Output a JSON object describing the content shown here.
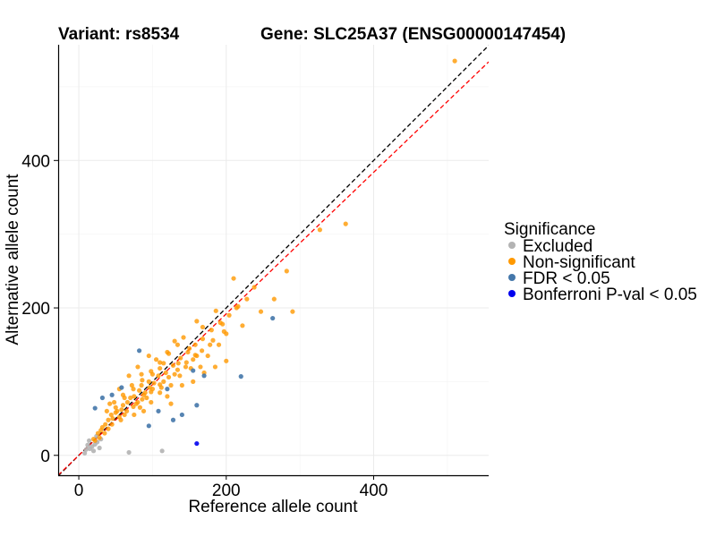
{
  "chart_data": {
    "type": "scatter",
    "title_left": "Variant: rs8534",
    "title_right": "Gene: SLC25A37 (ENSG00000147454)",
    "xlabel": "Reference allele count",
    "ylabel": "Alternative allele count",
    "xlim": [
      -28,
      556
    ],
    "ylim": [
      -27,
      557
    ],
    "x_ticks": [
      0,
      200,
      400
    ],
    "y_ticks": [
      0,
      200,
      400
    ],
    "grid": true,
    "legend_title": "Significance",
    "legend_position": "right",
    "reference_lines": [
      {
        "name": "identity",
        "slope": 1.0,
        "intercept": 0,
        "color": "#000000",
        "dash": "dashed"
      },
      {
        "name": "fit",
        "slope": 0.96,
        "intercept": 0,
        "color": "#ff0000",
        "dash": "dashed"
      }
    ],
    "series": [
      {
        "name": "Excluded",
        "color": "#b3b3b3",
        "points": [
          [
            10,
            8
          ],
          [
            12,
            14
          ],
          [
            15,
            9
          ],
          [
            18,
            12
          ],
          [
            20,
            6
          ],
          [
            22,
            15
          ],
          [
            25,
            18
          ],
          [
            14,
            20
          ],
          [
            30,
            22
          ],
          [
            28,
            10
          ],
          [
            68,
            4
          ],
          [
            113,
            6
          ],
          [
            8,
            3
          ],
          [
            24,
            26
          ]
        ]
      },
      {
        "name": "Non-significant",
        "color": "#ff9900",
        "points": [
          [
            510,
            535
          ],
          [
            362,
            314
          ],
          [
            327,
            306
          ],
          [
            282,
            250
          ],
          [
            290,
            195
          ],
          [
            247,
            195
          ],
          [
            238,
            228
          ],
          [
            210,
            240
          ],
          [
            265,
            212
          ],
          [
            222,
            176
          ],
          [
            195,
            178
          ],
          [
            228,
            212
          ],
          [
            186,
            196
          ],
          [
            168,
            174
          ],
          [
            200,
            165
          ],
          [
            214,
            200
          ],
          [
            178,
            150
          ],
          [
            160,
            182
          ],
          [
            155,
            130
          ],
          [
            142,
            160
          ],
          [
            175,
            135
          ],
          [
            190,
            150
          ],
          [
            120,
            140
          ],
          [
            135,
            125
          ],
          [
            110,
            118
          ],
          [
            150,
            145
          ],
          [
            130,
            155
          ],
          [
            165,
            120
          ],
          [
            125,
            95
          ],
          [
            100,
            110
          ],
          [
            95,
            100
          ],
          [
            90,
            85
          ],
          [
            85,
            95
          ],
          [
            80,
            72
          ],
          [
            75,
            80
          ],
          [
            70,
            78
          ],
          [
            65,
            60
          ],
          [
            60,
            68
          ],
          [
            55,
            52
          ],
          [
            50,
            58
          ],
          [
            45,
            42
          ],
          [
            40,
            48
          ],
          [
            35,
            30
          ],
          [
            32,
            38
          ],
          [
            28,
            24
          ],
          [
            26,
            30
          ],
          [
            22,
            20
          ],
          [
            20,
            22
          ],
          [
            38,
            60
          ],
          [
            42,
            70
          ],
          [
            55,
            90
          ],
          [
            68,
            108
          ],
          [
            80,
            120
          ],
          [
            95,
            135
          ],
          [
            60,
            82
          ],
          [
            48,
            72
          ],
          [
            72,
            95
          ],
          [
            85,
            110
          ],
          [
            105,
            130
          ],
          [
            115,
            100
          ],
          [
            130,
            110
          ],
          [
            145,
            120
          ],
          [
            160,
            135
          ],
          [
            110,
            85
          ],
          [
            98,
            72
          ],
          [
            120,
            80
          ],
          [
            88,
            60
          ],
          [
            75,
            55
          ],
          [
            140,
            95
          ],
          [
            125,
            70
          ],
          [
            155,
            100
          ],
          [
            170,
            112
          ],
          [
            185,
            120
          ],
          [
            200,
            128
          ],
          [
            100,
            90
          ],
          [
            92,
            78
          ],
          [
            82,
            88
          ],
          [
            78,
            70
          ],
          [
            66,
            72
          ],
          [
            58,
            62
          ],
          [
            52,
            60
          ],
          [
            46,
            50
          ],
          [
            44,
            55
          ],
          [
            36,
            42
          ],
          [
            30,
            34
          ],
          [
            115,
            125
          ],
          [
            108,
            108
          ],
          [
            102,
            98
          ],
          [
            96,
            92
          ],
          [
            88,
            82
          ],
          [
            118,
            112
          ],
          [
            128,
            122
          ],
          [
            138,
            132
          ],
          [
            148,
            140
          ],
          [
            158,
            150
          ],
          [
            168,
            158
          ],
          [
            180,
            170
          ],
          [
            192,
            180
          ],
          [
            204,
            190
          ],
          [
            216,
            202
          ],
          [
            62,
            55
          ],
          [
            74,
            66
          ],
          [
            86,
            76
          ],
          [
            98,
            86
          ],
          [
            110,
            96
          ],
          [
            122,
            106
          ],
          [
            134,
            116
          ],
          [
            146,
            126
          ],
          [
            158,
            136
          ],
          [
            50,
            65
          ],
          [
            62,
            78
          ],
          [
            74,
            90
          ],
          [
            86,
            102
          ],
          [
            98,
            114
          ],
          [
            110,
            126
          ],
          [
            122,
            138
          ],
          [
            134,
            150
          ],
          [
            40,
            36
          ],
          [
            57,
            48
          ],
          [
            83,
            65
          ],
          [
            112,
            92
          ],
          [
            137,
            108
          ],
          [
            152,
            118
          ],
          [
            167,
            142
          ],
          [
            182,
            156
          ],
          [
            197,
            168
          ]
        ]
      },
      {
        "name": "FDR < 0.05",
        "color": "#4477aa",
        "points": [
          [
            263,
            186
          ],
          [
            220,
            107
          ],
          [
            82,
            142
          ],
          [
            155,
            115
          ],
          [
            120,
            90
          ],
          [
            160,
            68
          ],
          [
            108,
            60
          ],
          [
            140,
            55
          ],
          [
            128,
            48
          ],
          [
            32,
            78
          ],
          [
            45,
            82
          ],
          [
            22,
            64
          ],
          [
            58,
            92
          ],
          [
            170,
            108
          ],
          [
            95,
            40
          ]
        ]
      },
      {
        "name": "Bonferroni P-val < 0.05",
        "color": "#0000ee",
        "points": [
          [
            160,
            16
          ]
        ]
      }
    ]
  }
}
